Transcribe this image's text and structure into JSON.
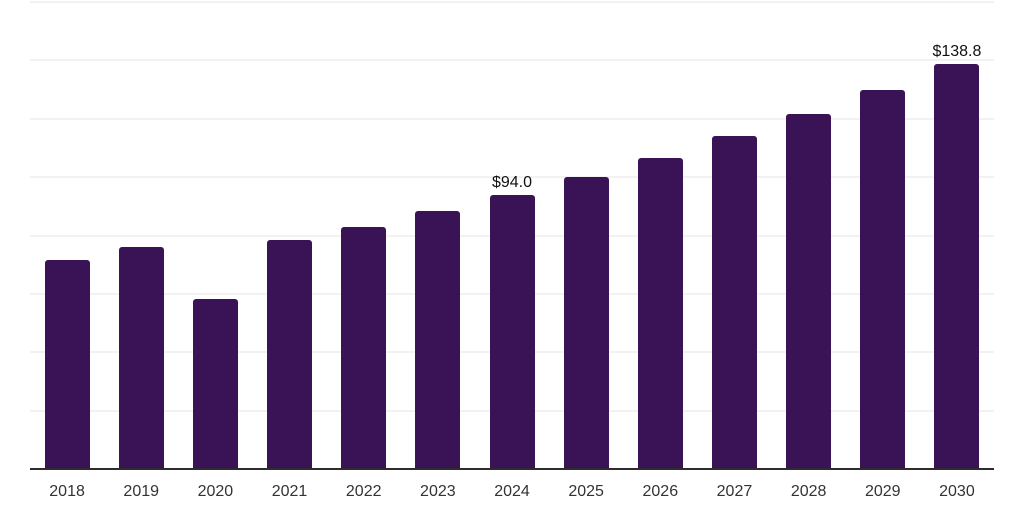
{
  "chart_data": {
    "type": "bar",
    "title": "",
    "xlabel": "",
    "ylabel": "",
    "categories": [
      "2018",
      "2019",
      "2020",
      "2021",
      "2022",
      "2023",
      "2024",
      "2025",
      "2026",
      "2027",
      "2028",
      "2029",
      "2030"
    ],
    "values": [
      71.6,
      76.1,
      58.4,
      78.6,
      83.0,
      88.3,
      94.0,
      99.9,
      106.5,
      114.2,
      121.7,
      129.9,
      138.8
    ],
    "value_labels": {
      "2024": "$94.0",
      "2030": "$138.8"
    },
    "ylim": [
      0,
      160
    ],
    "grid_step": 20,
    "grid": true,
    "legend": false,
    "colors": {
      "bar": "#3a1356",
      "gridline": "#f2f2f2",
      "axis": "#2d2d2d",
      "value_label": "#111111",
      "tick_label": "#333333",
      "background": "#ffffff"
    }
  }
}
